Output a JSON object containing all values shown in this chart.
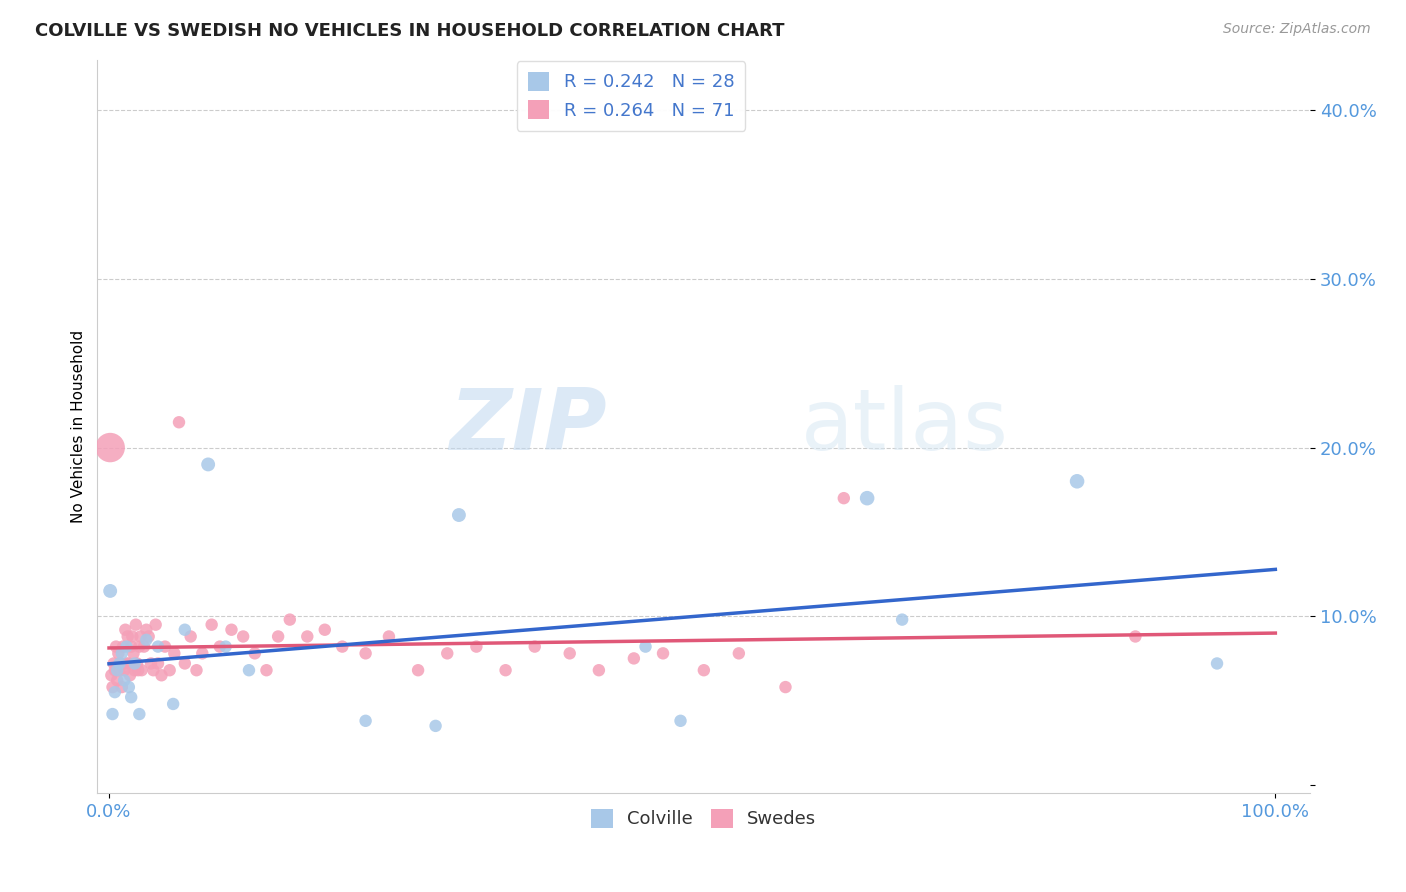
{
  "title": "COLVILLE VS SWEDISH NO VEHICLES IN HOUSEHOLD CORRELATION CHART",
  "source": "Source: ZipAtlas.com",
  "ylabel": "No Vehicles in Household",
  "colville_R": 0.242,
  "colville_N": 28,
  "swedes_R": 0.264,
  "swedes_N": 71,
  "colville_color": "#a8c8e8",
  "swedes_color": "#f4a0b8",
  "colville_line_color": "#3366cc",
  "swedes_line_color": "#e05878",
  "background_color": "#ffffff",
  "watermark_zip": "ZIP",
  "watermark_atlas": "atlas",
  "title_fontsize": 13,
  "source_fontsize": 10,
  "colville_x": [
    0.001,
    0.003,
    0.005,
    0.007,
    0.009,
    0.011,
    0.013,
    0.015,
    0.017,
    0.019,
    0.022,
    0.026,
    0.032,
    0.042,
    0.055,
    0.065,
    0.085,
    0.1,
    0.12,
    0.22,
    0.28,
    0.3,
    0.46,
    0.49,
    0.65,
    0.68,
    0.83,
    0.95
  ],
  "colville_y": [
    0.115,
    0.042,
    0.055,
    0.068,
    0.072,
    0.078,
    0.062,
    0.082,
    0.058,
    0.052,
    0.072,
    0.042,
    0.086,
    0.082,
    0.048,
    0.092,
    0.19,
    0.082,
    0.068,
    0.038,
    0.035,
    0.16,
    0.082,
    0.038,
    0.17,
    0.098,
    0.18,
    0.072
  ],
  "colville_sizes": [
    100,
    80,
    80,
    80,
    80,
    80,
    80,
    80,
    80,
    80,
    80,
    80,
    80,
    80,
    80,
    80,
    100,
    80,
    80,
    80,
    80,
    100,
    80,
    80,
    110,
    80,
    110,
    80
  ],
  "swedes_x": [
    0.001,
    0.002,
    0.003,
    0.004,
    0.005,
    0.006,
    0.007,
    0.008,
    0.009,
    0.01,
    0.011,
    0.012,
    0.013,
    0.014,
    0.015,
    0.016,
    0.017,
    0.018,
    0.019,
    0.02,
    0.021,
    0.022,
    0.023,
    0.024,
    0.025,
    0.026,
    0.027,
    0.028,
    0.03,
    0.032,
    0.034,
    0.036,
    0.038,
    0.04,
    0.042,
    0.045,
    0.048,
    0.052,
    0.056,
    0.06,
    0.065,
    0.07,
    0.075,
    0.08,
    0.088,
    0.095,
    0.105,
    0.115,
    0.125,
    0.135,
    0.145,
    0.155,
    0.17,
    0.185,
    0.2,
    0.22,
    0.24,
    0.265,
    0.29,
    0.315,
    0.34,
    0.365,
    0.395,
    0.42,
    0.45,
    0.475,
    0.51,
    0.54,
    0.58,
    0.63,
    0.88
  ],
  "swedes_y": [
    0.2,
    0.065,
    0.058,
    0.072,
    0.068,
    0.082,
    0.062,
    0.078,
    0.068,
    0.072,
    0.058,
    0.082,
    0.068,
    0.092,
    0.072,
    0.088,
    0.072,
    0.065,
    0.082,
    0.088,
    0.078,
    0.068,
    0.095,
    0.072,
    0.068,
    0.082,
    0.088,
    0.068,
    0.082,
    0.092,
    0.088,
    0.072,
    0.068,
    0.095,
    0.072,
    0.065,
    0.082,
    0.068,
    0.078,
    0.215,
    0.072,
    0.088,
    0.068,
    0.078,
    0.095,
    0.082,
    0.092,
    0.088,
    0.078,
    0.068,
    0.088,
    0.098,
    0.088,
    0.092,
    0.082,
    0.078,
    0.088,
    0.068,
    0.078,
    0.082,
    0.068,
    0.082,
    0.078,
    0.068,
    0.075,
    0.078,
    0.068,
    0.078,
    0.058,
    0.17,
    0.088
  ],
  "swedes_sizes": [
    450,
    80,
    80,
    80,
    80,
    80,
    80,
    80,
    80,
    80,
    80,
    80,
    80,
    80,
    80,
    80,
    80,
    80,
    80,
    80,
    80,
    80,
    80,
    80,
    80,
    80,
    80,
    80,
    80,
    80,
    80,
    80,
    80,
    80,
    80,
    80,
    80,
    80,
    80,
    80,
    80,
    80,
    80,
    80,
    80,
    80,
    80,
    80,
    80,
    80,
    80,
    80,
    80,
    80,
    80,
    80,
    80,
    80,
    80,
    80,
    80,
    80,
    80,
    80,
    80,
    80,
    80,
    80,
    80,
    80,
    80
  ],
  "xlim": [
    -0.01,
    1.03
  ],
  "ylim": [
    -0.005,
    0.43
  ],
  "ytick_vals": [
    0.0,
    0.1,
    0.2,
    0.3,
    0.4
  ],
  "ytick_labels": [
    "",
    "10.0%",
    "20.0%",
    "30.0%",
    "40.0%"
  ]
}
